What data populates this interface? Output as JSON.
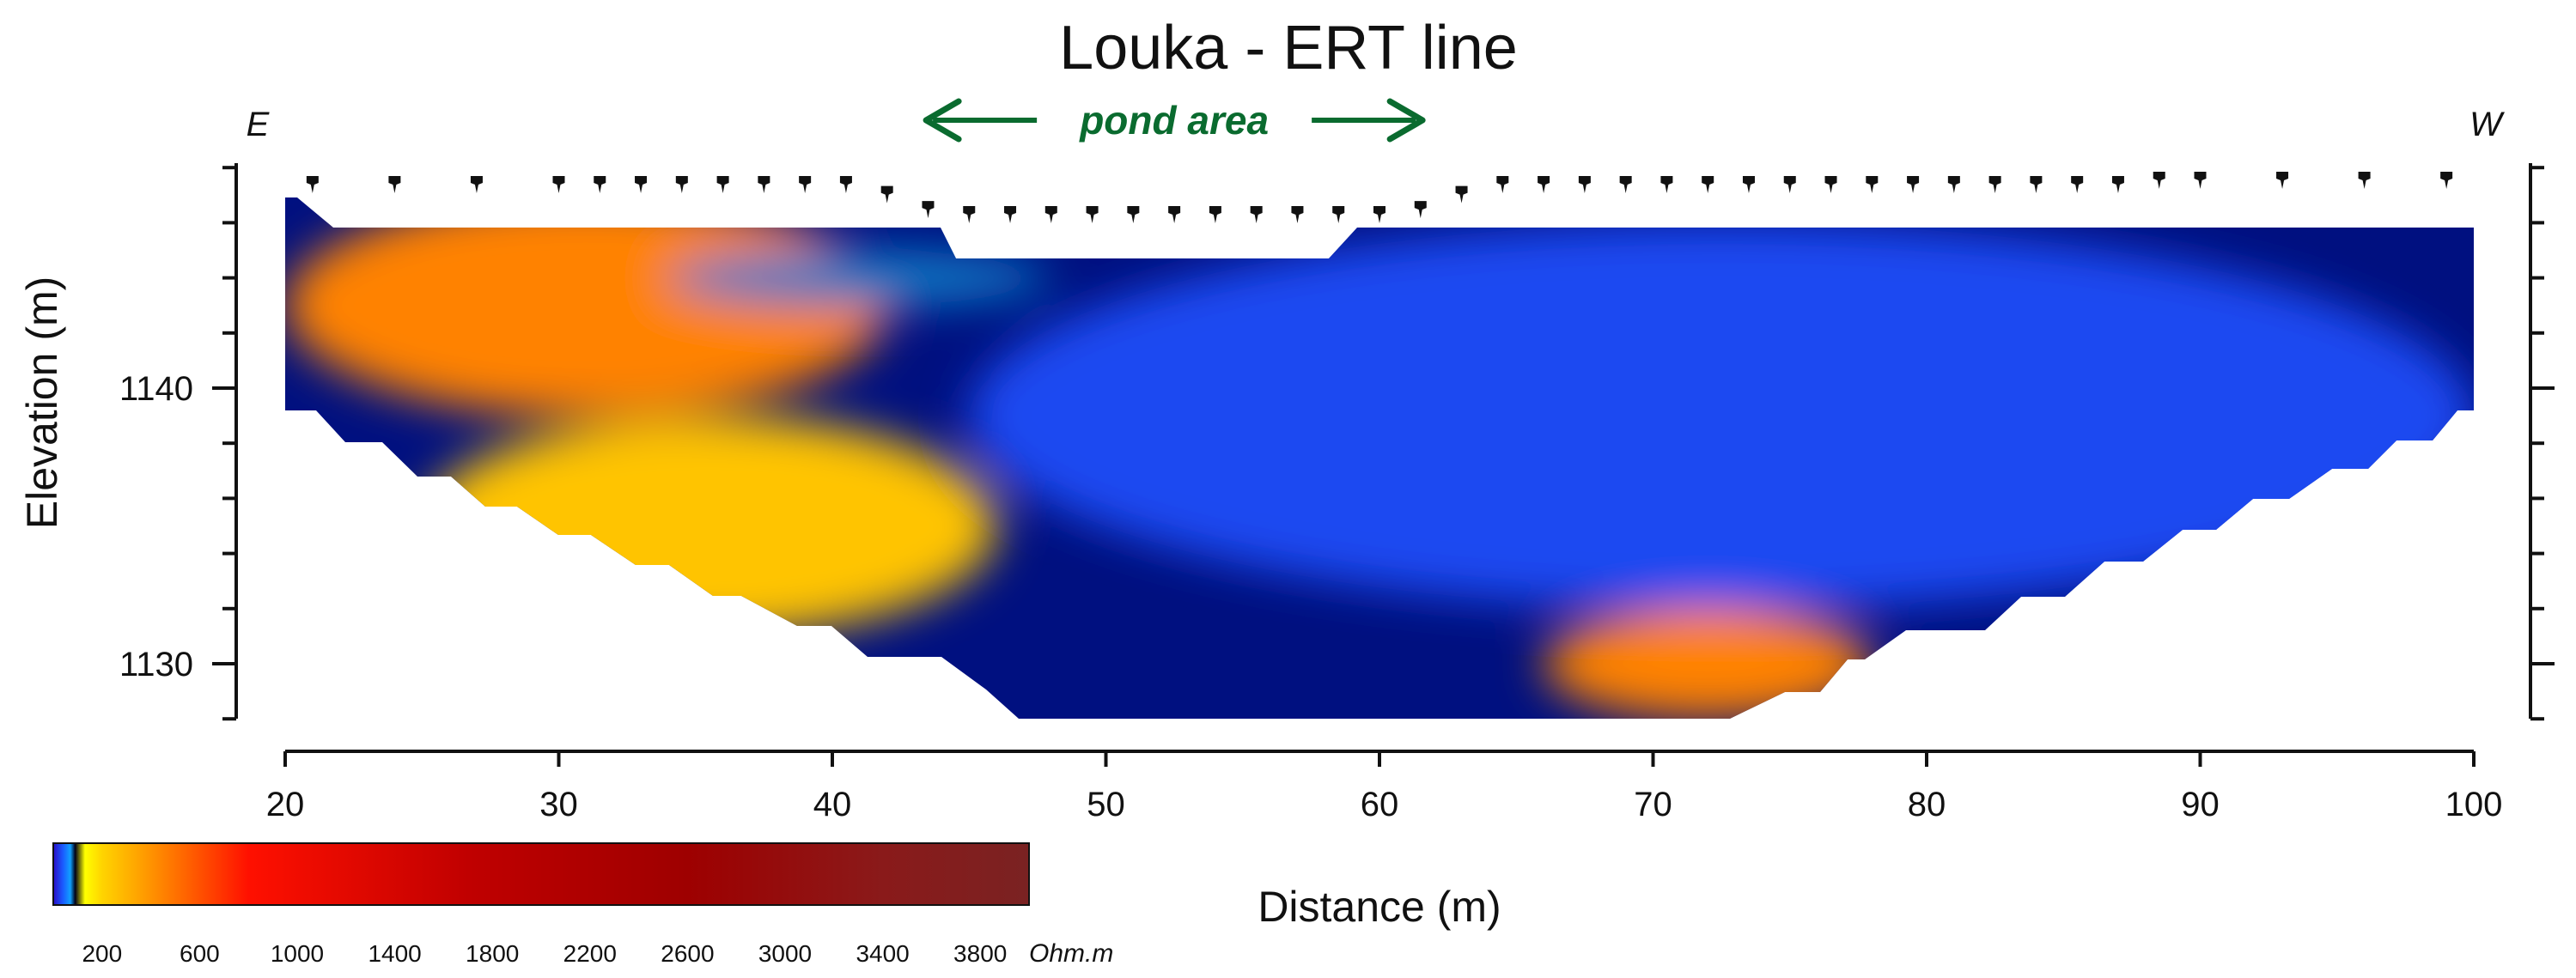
{
  "chart_data": {
    "type": "heatmap",
    "title": "Louka - ERT line",
    "xlabel": "Distance (m)",
    "ylabel": "Elevation (m)",
    "xlim": [
      20,
      100
    ],
    "ylim": [
      1128,
      1148
    ],
    "x_ticks": [
      20,
      30,
      40,
      50,
      60,
      70,
      80,
      90,
      100
    ],
    "y_ticks": [
      1130,
      1140
    ],
    "direction_labels": {
      "left": "E",
      "right": "W"
    },
    "annotation": {
      "text": "pond area",
      "x_range": [
        43.3,
        61.7
      ]
    },
    "electrodes_x": [
      21,
      24,
      27,
      30,
      31.5,
      33,
      34.5,
      36,
      37.5,
      39,
      40.5,
      42,
      43.5,
      45,
      46.5,
      48,
      49.5,
      51,
      52.5,
      54,
      55.5,
      57,
      58.5,
      60,
      61.5,
      63,
      64.5,
      66,
      67.5,
      69,
      70.5,
      72,
      73.5,
      75,
      76.5,
      78,
      79.5,
      81,
      82.5,
      84,
      85.5,
      87,
      88.5,
      90,
      93,
      96,
      99
    ],
    "colorbar": {
      "unit": "Ohm.m",
      "range": [
        0,
        4000
      ],
      "tick_labels": [
        "200",
        "600",
        "1000",
        "1400",
        "1800",
        "2200",
        "2600",
        "3000",
        "3400",
        "3800"
      ],
      "tick_values": [
        200,
        600,
        1000,
        1400,
        1800,
        2200,
        2600,
        3000,
        3400,
        3800
      ],
      "stops": [
        {
          "value": 0,
          "color": "#2a0cc8"
        },
        {
          "value": 40,
          "color": "#1a5cff"
        },
        {
          "value": 70,
          "color": "#10a0ff"
        },
        {
          "value": 90,
          "color": "#000018"
        },
        {
          "value": 130,
          "color": "#ffff00"
        },
        {
          "value": 200,
          "color": "#ffd400"
        },
        {
          "value": 420,
          "color": "#ff8c00"
        },
        {
          "value": 800,
          "color": "#ff1000"
        },
        {
          "value": 1700,
          "color": "#c00000"
        },
        {
          "value": 2600,
          "color": "#9e0000"
        },
        {
          "value": 3400,
          "color": "#8a1a1a"
        },
        {
          "value": 4000,
          "color": "#7a2222"
        }
      ]
    },
    "resistivity_zones": [
      {
        "zone": "shallow east",
        "x": [
          20,
          42
        ],
        "y": [
          1139,
          1147
        ],
        "ohm_m": 450
      },
      {
        "zone": "deep east",
        "x": [
          25,
          46
        ],
        "y": [
          1131,
          1139
        ],
        "ohm_m": 250
      },
      {
        "zone": "central",
        "x": [
          45,
          100
        ],
        "y": [
          1132,
          1146
        ],
        "ohm_m": 30
      },
      {
        "zone": "shallow cyan",
        "x": [
          34,
          48
        ],
        "y": [
          1143,
          1145
        ],
        "ohm_m": 75
      },
      {
        "zone": "deep west",
        "x": [
          66,
          78
        ],
        "y": [
          1128,
          1132
        ],
        "ohm_m": 450
      }
    ]
  }
}
